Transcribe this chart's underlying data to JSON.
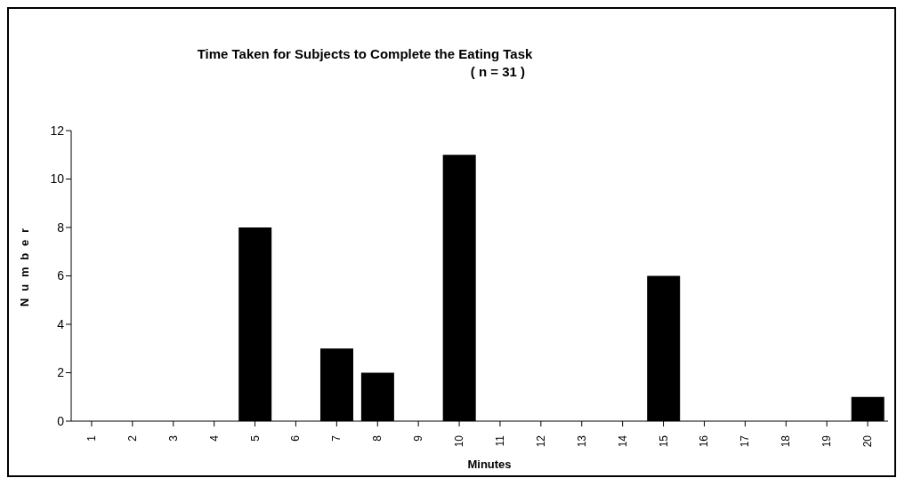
{
  "chart_data": {
    "type": "bar",
    "title": "Time Taken for Subjects to Complete the Eating Task",
    "subtitle": "( n = 31 )",
    "xlabel": "Minutes",
    "ylabel": "Number",
    "categories": [
      "1",
      "2",
      "3",
      "4",
      "5",
      "6",
      "7",
      "8",
      "9",
      "10",
      "11",
      "12",
      "13",
      "14",
      "15",
      "16",
      "17",
      "18",
      "19",
      "20"
    ],
    "values": [
      0,
      0,
      0,
      0,
      8,
      0,
      3,
      2,
      0,
      11,
      0,
      0,
      0,
      0,
      6,
      0,
      0,
      0,
      0,
      1
    ],
    "color": "#000000",
    "ylim": [
      0,
      12
    ],
    "yticks": [
      0,
      2,
      4,
      6,
      8,
      10,
      12
    ],
    "grid": false,
    "legend": false
  }
}
